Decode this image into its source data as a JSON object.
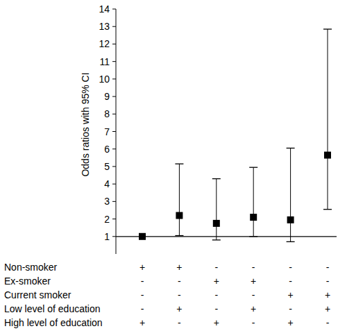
{
  "chart_data": {
    "type": "scatter",
    "y_label": "Odds ratios with 95% CI",
    "categories": [
      null,
      null,
      null,
      null,
      null,
      null
    ],
    "values": [
      1,
      2.2,
      1.75,
      2.1,
      1.95,
      5.65
    ],
    "ci_low": [
      null,
      1.05,
      0.8,
      1.0,
      0.7,
      2.55
    ],
    "ci_high": [
      null,
      5.15,
      4.3,
      4.95,
      6.05,
      12.85
    ],
    "hline": 1,
    "marker": "square",
    "color": "#000000",
    "ylim": [
      0,
      14
    ],
    "yticks": [
      1,
      2,
      3,
      4,
      5,
      6,
      7,
      8,
      9,
      10,
      11,
      12,
      13,
      14
    ],
    "indicator_rows": [
      {
        "label": "Non-smoker",
        "values": [
          "+",
          "+",
          "-",
          "-",
          "-",
          "-"
        ]
      },
      {
        "label": "Ex-smoker",
        "values": [
          "-",
          "-",
          "+",
          "+",
          "-",
          "-"
        ]
      },
      {
        "label": "Current smoker",
        "values": [
          "-",
          "-",
          "-",
          "-",
          "+",
          "+"
        ]
      },
      {
        "label": "Low level of education",
        "values": [
          "-",
          "+",
          "-",
          "+",
          "-",
          "+"
        ]
      },
      {
        "label": "High level of education",
        "values": [
          "+",
          "-",
          "+",
          "-",
          "+",
          "-"
        ]
      }
    ]
  }
}
